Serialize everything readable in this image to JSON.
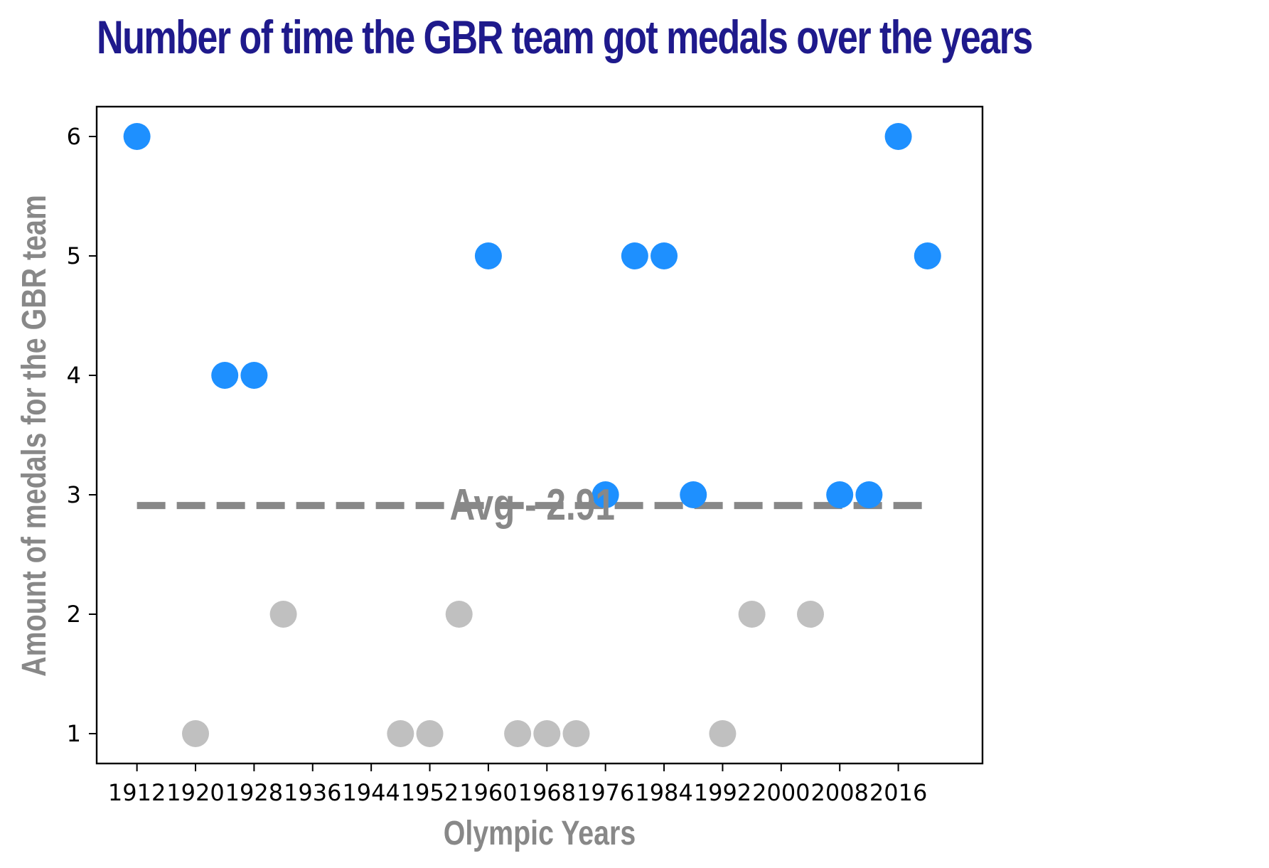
{
  "chart_data": {
    "type": "scatter",
    "title": "Number of time the GBR team got medals over the years",
    "xlabel": "Olympic Years",
    "ylabel": "Amount of medals for the GBR team",
    "xlim": [
      1906.5,
      2027.5
    ],
    "ylim": [
      0.75,
      6.25
    ],
    "xticks": [
      1912,
      1920,
      1928,
      1936,
      1944,
      1952,
      1960,
      1968,
      1976,
      1984,
      1992,
      2000,
      2008,
      2016
    ],
    "yticks": [
      1,
      2,
      3,
      4,
      5,
      6
    ],
    "grid": false,
    "points": [
      {
        "x": 1912,
        "y": 6
      },
      {
        "x": 1920,
        "y": 1
      },
      {
        "x": 1924,
        "y": 4
      },
      {
        "x": 1928,
        "y": 4
      },
      {
        "x": 1932,
        "y": 2
      },
      {
        "x": 1948,
        "y": 1
      },
      {
        "x": 1952,
        "y": 1
      },
      {
        "x": 1956,
        "y": 2
      },
      {
        "x": 1960,
        "y": 5
      },
      {
        "x": 1964,
        "y": 1
      },
      {
        "x": 1968,
        "y": 1
      },
      {
        "x": 1972,
        "y": 1
      },
      {
        "x": 1976,
        "y": 3
      },
      {
        "x": 1980,
        "y": 5
      },
      {
        "x": 1984,
        "y": 5
      },
      {
        "x": 1988,
        "y": 3
      },
      {
        "x": 1992,
        "y": 1
      },
      {
        "x": 1996,
        "y": 2
      },
      {
        "x": 2004,
        "y": 2
      },
      {
        "x": 2008,
        "y": 3
      },
      {
        "x": 2012,
        "y": 3
      },
      {
        "x": 2016,
        "y": 6
      },
      {
        "x": 2020,
        "y": 5
      }
    ],
    "average": {
      "value": 2.91,
      "label": "Avg - 2.91",
      "x_start": 1912,
      "x_end": 2020
    },
    "colors": {
      "above_average": "#1e90ff",
      "below_average": "#c0c0c0",
      "average_line": "#888888",
      "title": "#1f1a8c"
    }
  }
}
